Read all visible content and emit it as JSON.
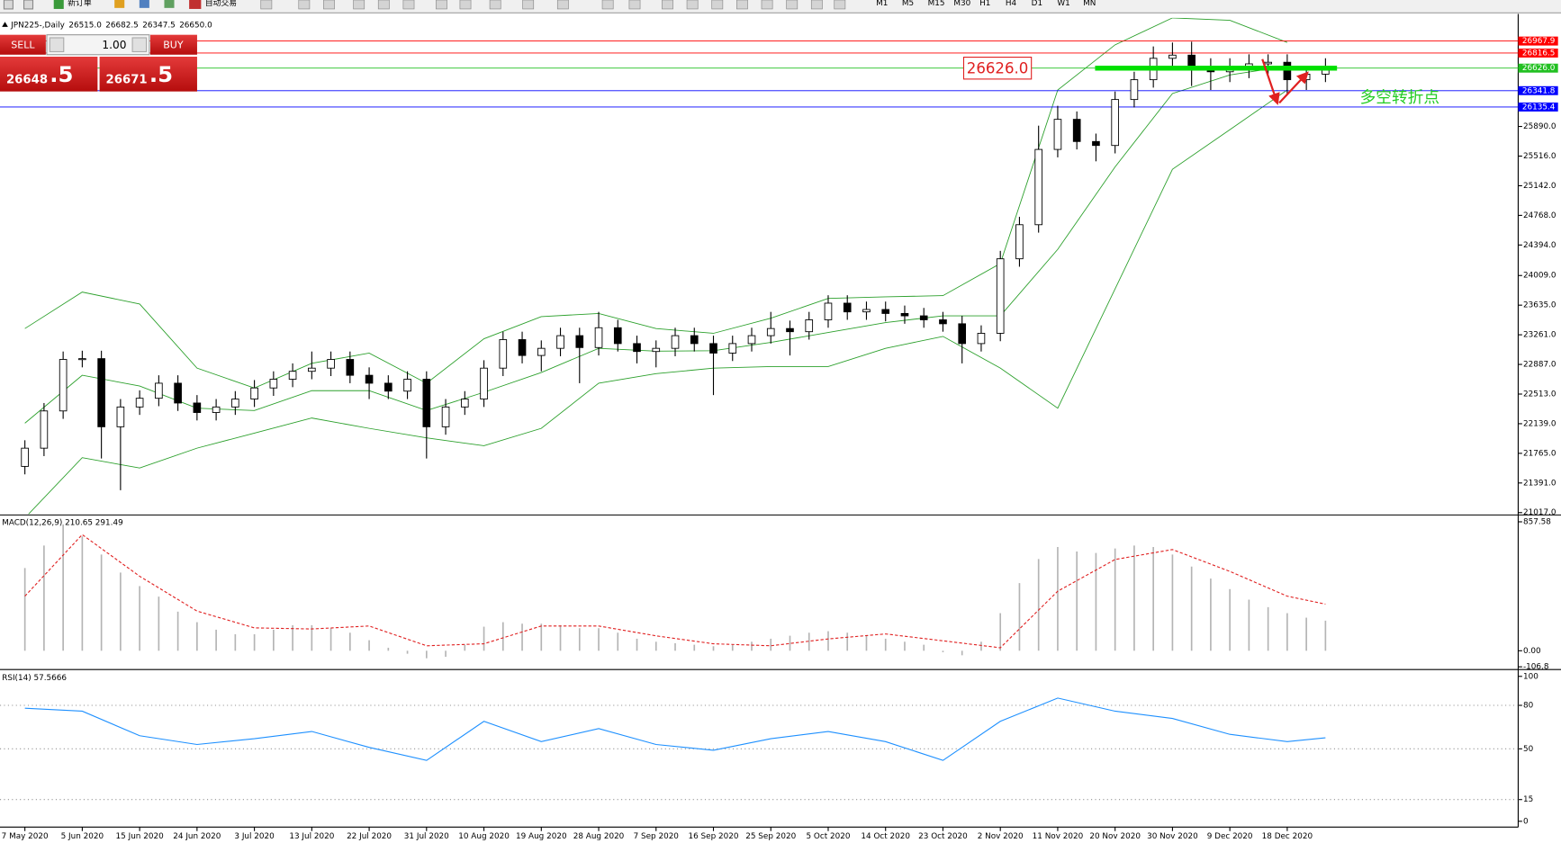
{
  "toolbar": {
    "new_order": "新订单",
    "auto_trading": "自动交易",
    "timeframes": [
      "M1",
      "M5",
      "M15",
      "M30",
      "H1",
      "H4",
      "D1",
      "W1",
      "MN"
    ]
  },
  "trade_panel": {
    "sell": "SELL",
    "buy": "BUY",
    "volume": "1.00",
    "sell_price": "26648",
    "sell_pips": ".5",
    "buy_price": "26671",
    "buy_pips": ".5"
  },
  "chart_data": [
    {
      "type": "candlestick",
      "title": "JPN225-,Daily",
      "quote": [
        {
          "value": 26515,
          "label": "26515.0"
        },
        {
          "value": 26682.5,
          "label": "26682.5"
        },
        {
          "value": 26347.5,
          "label": "26347.5"
        },
        {
          "value": 26650,
          "label": "26650.0"
        }
      ],
      "categories": [
        "7 May 2020",
        null,
        null,
        "5 Jun 2020",
        null,
        null,
        "15 Jun 2020",
        null,
        null,
        "24 Jun 2020",
        null,
        null,
        "3 Jul 2020",
        null,
        null,
        "13 Jul 2020",
        null,
        null,
        "22 Jul 2020",
        null,
        null,
        "31 Jul 2020",
        null,
        null,
        "10 Aug 2020",
        null,
        null,
        "19 Aug 2020",
        null,
        null,
        "28 Aug 2020",
        null,
        null,
        "7 Sep 2020",
        null,
        null,
        "16 Sep 2020",
        null,
        null,
        "25 Sep 2020",
        null,
        null,
        "5 Oct 2020",
        null,
        null,
        "14 Oct 2020",
        null,
        null,
        "23 Oct 2020",
        null,
        null,
        "2 Nov 2020",
        null,
        null,
        "11 Nov 2020",
        null,
        null,
        "20 Nov 2020",
        null,
        null,
        "30 Nov 2020",
        null,
        null,
        "9 Dec 2020",
        null,
        null,
        "18 Dec 2020",
        null,
        null
      ],
      "open": [
        21600,
        21830,
        22300,
        22950,
        22960,
        22100,
        22350,
        22460,
        22650,
        22400,
        22280,
        22350,
        22450,
        22590,
        22700,
        22800,
        22840,
        22950,
        22750,
        22650,
        22550,
        22700,
        22100,
        22350,
        22450,
        22840,
        23200,
        23000,
        23090,
        23250,
        23100,
        23350,
        23150,
        23050,
        23090,
        23250,
        23150,
        23030,
        23150,
        23250,
        23340,
        23300,
        23450,
        23660,
        23550,
        23580,
        23530,
        23500,
        23450,
        23400,
        23150,
        23280,
        24220,
        24650,
        25600,
        25980,
        25700,
        25650,
        26230,
        26480,
        26750,
        26790,
        26650,
        26580,
        26610,
        26680,
        26700,
        26480,
        26550
      ],
      "high": [
        21930,
        22400,
        23050,
        23060,
        23060,
        22450,
        22560,
        22750,
        22750,
        22500,
        22450,
        22550,
        22690,
        22800,
        22900,
        23050,
        23050,
        23050,
        22850,
        22750,
        22800,
        22800,
        22450,
        22550,
        22940,
        23300,
        23300,
        23190,
        23350,
        23350,
        23550,
        23450,
        23250,
        23190,
        23350,
        23350,
        23250,
        23250,
        23350,
        23550,
        23440,
        23550,
        23760,
        23760,
        23680,
        23680,
        23630,
        23600,
        23550,
        23500,
        23380,
        24320,
        24750,
        25900,
        26150,
        26080,
        25800,
        26330,
        26580,
        26900,
        26950,
        26960,
        26750,
        26750,
        26800,
        26800,
        26800,
        26650,
        26750
      ],
      "low": [
        21500,
        21730,
        22200,
        22850,
        21700,
        21300,
        22250,
        22360,
        22300,
        22180,
        22180,
        22250,
        22350,
        22490,
        22600,
        22700,
        22740,
        22650,
        22450,
        22450,
        22450,
        21700,
        22000,
        22250,
        22350,
        22740,
        22900,
        22800,
        22990,
        22650,
        23000,
        23050,
        22900,
        22850,
        22990,
        23050,
        22500,
        22930,
        23050,
        23150,
        23000,
        23200,
        23350,
        23450,
        23450,
        23430,
        23400,
        23350,
        23300,
        22900,
        23050,
        23180,
        24120,
        24550,
        25500,
        25600,
        25450,
        25550,
        26130,
        26380,
        26650,
        26400,
        26350,
        26450,
        26500,
        26550,
        26300,
        26350,
        26450
      ],
      "close": [
        21830,
        22300,
        22950,
        22960,
        22100,
        22350,
        22460,
        22650,
        22400,
        22280,
        22350,
        22450,
        22590,
        22700,
        22800,
        22840,
        22950,
        22750,
        22650,
        22550,
        22700,
        22100,
        22350,
        22450,
        22840,
        23200,
        23000,
        23090,
        23250,
        23100,
        23350,
        23150,
        23050,
        23090,
        23250,
        23150,
        23030,
        23150,
        23250,
        23340,
        23300,
        23450,
        23660,
        23550,
        23580,
        23530,
        23500,
        23450,
        23400,
        23150,
        23280,
        24220,
        24650,
        25600,
        25980,
        25700,
        25650,
        26230,
        26480,
        26750,
        26790,
        26650,
        26580,
        26610,
        26680,
        26700,
        26480,
        26550,
        26650
      ],
      "bands": {
        "color": "#2ca02c",
        "x": [
          0,
          3,
          6,
          9,
          12,
          15,
          18,
          21,
          24,
          27,
          30,
          33,
          36,
          39,
          42,
          45,
          48,
          51,
          54,
          57,
          60,
          63,
          66
        ],
        "upper": [
          23340,
          23800,
          23650,
          22840,
          22590,
          22900,
          23030,
          22650,
          23210,
          23490,
          23530,
          23340,
          23280,
          23470,
          23720,
          23740,
          23755,
          24160,
          26350,
          26920,
          27260,
          27230,
          26950
        ],
        "middle": [
          22145,
          22750,
          22615,
          22335,
          22305,
          22555,
          22555,
          22305,
          22535,
          22785,
          23090,
          23055,
          23060,
          23165,
          23290,
          23415,
          23500,
          23500,
          24340,
          25380,
          26305,
          26540,
          26650
        ],
        "lower": [
          20950,
          21710,
          21580,
          21830,
          22020,
          22210,
          22080,
          21960,
          21860,
          22080,
          22650,
          22770,
          22840,
          22860,
          22860,
          23090,
          23240,
          22840,
          22335,
          23840,
          25350,
          25850,
          26350
        ]
      },
      "levels": [
        {
          "value": 26967.9,
          "label": "26967.9",
          "color": "#ff0000"
        },
        {
          "value": 26816.5,
          "label": "26816.5",
          "color": "#ff0000"
        },
        {
          "value": 26626,
          "label": "26626.0",
          "color": "#22c022"
        },
        {
          "value": 26341.8,
          "label": "26341.8",
          "color": "#0000ff"
        },
        {
          "value": 26135.4,
          "label": "26135.4",
          "color": "#0000ff"
        }
      ],
      "annotation": {
        "value": 26626,
        "label": "26626.0",
        "text": "多空转折点"
      },
      "ylim": [
        21000,
        27260
      ],
      "yticks": [
        {
          "value": 25890,
          "label": "25890.0"
        },
        {
          "value": 25516,
          "label": "25516.0"
        },
        {
          "value": 25142,
          "label": "25142.0"
        },
        {
          "value": 24768,
          "label": "24768.0"
        },
        {
          "value": 24394,
          "label": "24394.0"
        },
        {
          "value": 24009,
          "label": "24009.0"
        },
        {
          "value": 23635,
          "label": "23635.0"
        },
        {
          "value": 23261,
          "label": "23261.0"
        },
        {
          "value": 22887,
          "label": "22887.0"
        },
        {
          "value": 22513,
          "label": "22513.0"
        },
        {
          "value": 22139,
          "label": "22139.0"
        },
        {
          "value": 21765,
          "label": "21765.0"
        },
        {
          "value": 21391,
          "label": "21391.0"
        },
        {
          "value": 21017,
          "label": "21017.0"
        }
      ]
    },
    {
      "type": "bar",
      "title": "MACD(12,26,9) 210.65 291.49",
      "color": "#b4b4b4",
      "values": [
        550,
        700,
        840,
        760,
        640,
        520,
        430,
        360,
        260,
        190,
        140,
        110,
        110,
        140,
        170,
        170,
        150,
        120,
        70,
        20,
        -20,
        -50,
        -40,
        40,
        160,
        190,
        180,
        180,
        170,
        150,
        150,
        120,
        80,
        60,
        50,
        40,
        30,
        40,
        60,
        80,
        100,
        120,
        130,
        120,
        100,
        80,
        60,
        40,
        -10,
        -30,
        60,
        250,
        450,
        610,
        690,
        660,
        650,
        680,
        700,
        690,
        640,
        560,
        480,
        410,
        340,
        290,
        250,
        220,
        200
      ],
      "signal": {
        "color": "#e02020",
        "x": [
          0,
          3,
          6,
          9,
          12,
          15,
          18,
          21,
          24,
          27,
          30,
          33,
          36,
          39,
          42,
          45,
          48,
          51,
          54,
          57,
          60,
          63,
          66,
          68
        ],
        "values": [
          363,
          772,
          495,
          264,
          152,
          145,
          165,
          33,
          46,
          165,
          165,
          99,
          46,
          33,
          79,
          112,
          66,
          20,
          396,
          607,
          673,
          528,
          363,
          310
        ]
      },
      "ylim": [
        -115,
        890
      ],
      "yticks": [
        {
          "value": 857.58,
          "label": "857.58"
        },
        {
          "value": 0,
          "label": "0.00"
        },
        {
          "value": -106.8,
          "label": "-106.8"
        }
      ]
    },
    {
      "type": "line",
      "title": "RSI(14) 57.5666",
      "color": "#1e90ff",
      "x": [
        0,
        3,
        6,
        9,
        12,
        15,
        18,
        21,
        24,
        27,
        30,
        33,
        36,
        39,
        42,
        45,
        48,
        51,
        54,
        57,
        60,
        63,
        66,
        68
      ],
      "values": [
        78,
        76,
        59,
        53,
        57,
        62,
        51,
        42,
        69,
        55,
        64,
        53,
        49,
        57,
        62,
        55,
        42,
        69,
        85,
        76,
        71,
        60,
        55,
        57.5666
      ],
      "ylim": [
        -4,
        103
      ],
      "yticks": [
        100,
        80,
        50,
        15,
        0
      ],
      "grid": true
    }
  ]
}
